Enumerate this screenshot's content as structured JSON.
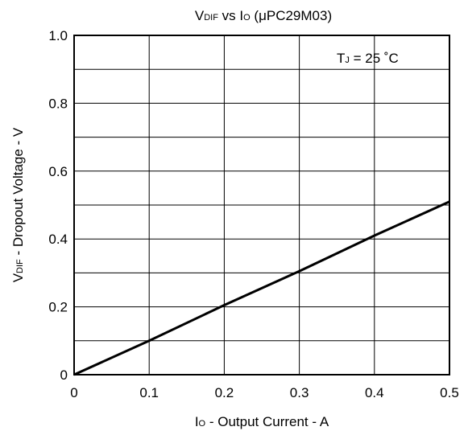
{
  "chart_data": {
    "type": "line",
    "title": {
      "main": "V",
      "main_sub": "DIF",
      "mid": " vs I",
      "mid_sub": "O",
      "tail": " (μPC29M03)"
    },
    "xlabel": {
      "main": "I",
      "sub": "O",
      "rest": " - Output Current - A"
    },
    "ylabel": {
      "main": "V",
      "sub": "DIF",
      "rest": " - Dropout Voltage - V"
    },
    "annotation": {
      "main": "T",
      "sub": "J",
      "rest": " = 25 ˚C"
    },
    "xlim": [
      0,
      0.5
    ],
    "ylim": [
      0,
      1.0
    ],
    "x_ticks": [
      "0",
      "0.1",
      "0.2",
      "0.3",
      "0.4",
      "0.5"
    ],
    "y_ticks": [
      "0",
      "0.2",
      "0.4",
      "0.6",
      "0.8",
      "1.0"
    ],
    "grid": true,
    "series": [
      {
        "x": [
          0,
          0.1,
          0.2,
          0.3,
          0.4,
          0.5
        ],
        "y": [
          0,
          0.1,
          0.205,
          0.305,
          0.41,
          0.51
        ]
      }
    ]
  }
}
